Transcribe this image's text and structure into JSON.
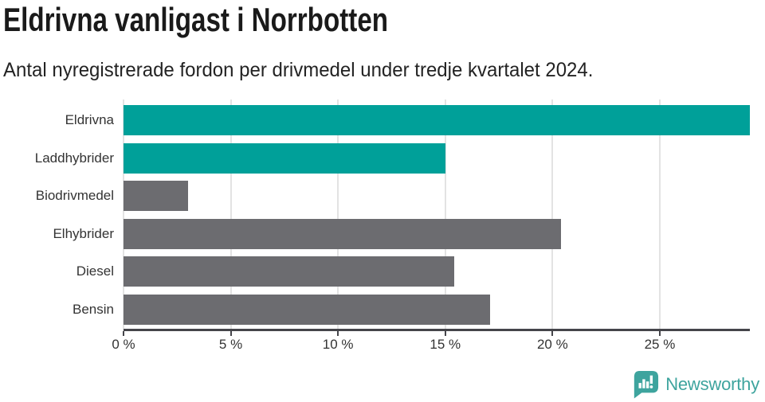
{
  "header": {
    "title": "Eldrivna vanligast i Norrbotten",
    "subtitle": "Antal nyregistrerade fordon per drivmedel under tredje kvartalet 2024."
  },
  "chart_data": {
    "type": "bar",
    "orientation": "horizontal",
    "title": "Eldrivna vanligast i Norrbotten",
    "subtitle": "Antal nyregistrerade fordon per drivmedel under tredje kvartalet 2024.",
    "categories": [
      "Eldrivna",
      "Laddhybrider",
      "Biodrivmedel",
      "Elhybrider",
      "Diesel",
      "Bensin"
    ],
    "values": [
      29.2,
      15.0,
      3.0,
      20.4,
      15.4,
      17.1
    ],
    "unit": "%",
    "xlim": [
      0,
      29.2
    ],
    "x_ticks": [
      0,
      5,
      10,
      15,
      20,
      25
    ],
    "x_tick_labels": [
      "0 %",
      "5 %",
      "10 %",
      "15 %",
      "20 %",
      "25 %"
    ],
    "grid": true,
    "legend": false,
    "bar_colors": [
      "#00a099",
      "#00a099",
      "#6c6c70",
      "#6c6c70",
      "#6c6c70",
      "#6c6c70"
    ],
    "highlight_color": "#00a099",
    "default_color": "#6c6c70"
  },
  "branding": {
    "logo_text": "Newsworthy",
    "logo_color": "#3ea49e",
    "logo_icon": "newsworthy-chart-bubble-icon"
  },
  "colors": {
    "background": "#ffffff",
    "title_text": "#1a1a1a",
    "body_text": "#333333",
    "axis": "#45454a",
    "gridline": "#e3e3e3"
  }
}
